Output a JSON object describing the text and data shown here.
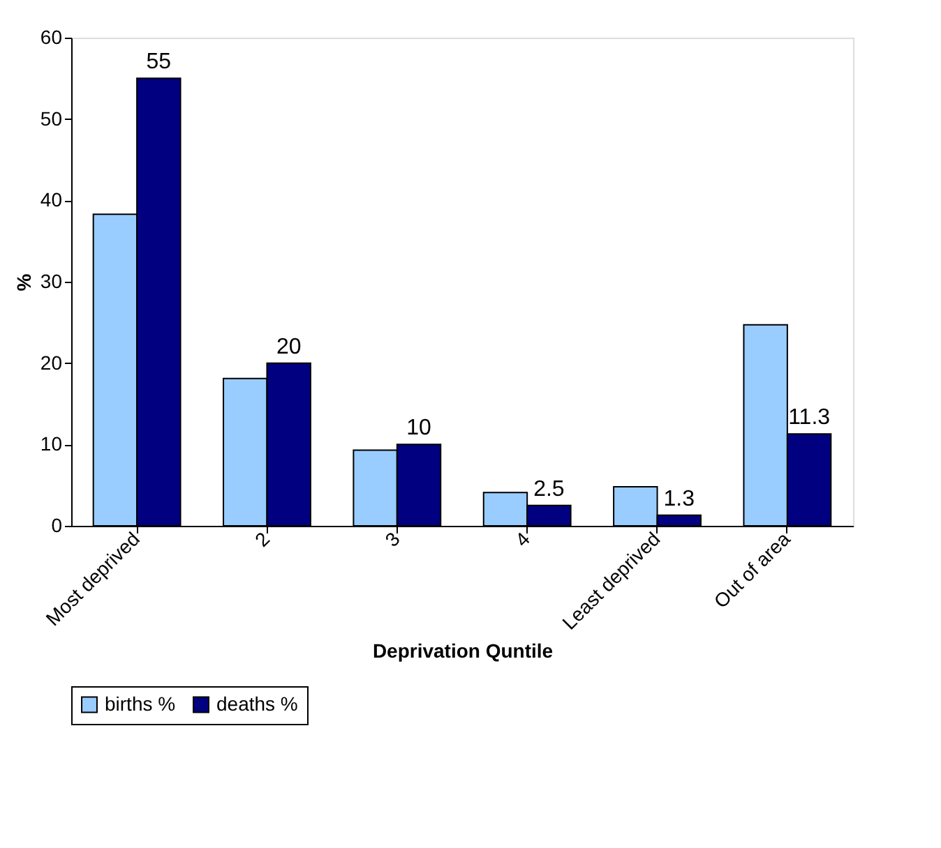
{
  "chart_data": {
    "type": "bar",
    "xlabel": "Deprivation Quntile",
    "ylabel": "%",
    "categories": [
      "Most deprived",
      "2",
      "3",
      "4",
      "Least deprived",
      "Out of area"
    ],
    "series": [
      {
        "name": "births %",
        "color": "#99ccff",
        "values": [
          38.3,
          18.1,
          9.3,
          4.1,
          4.8,
          24.7
        ]
      },
      {
        "name": "deaths %",
        "color": "#000080",
        "values": [
          55,
          20,
          10,
          2.5,
          1.3,
          11.3
        ],
        "value_labels": [
          "55",
          "20",
          "10",
          "2.5",
          "1.3",
          "11.3"
        ]
      }
    ],
    "ylim": [
      0,
      60
    ],
    "yticks": [
      0,
      10,
      20,
      30,
      40,
      50,
      60
    ],
    "grid": false,
    "legend": "bottom"
  }
}
